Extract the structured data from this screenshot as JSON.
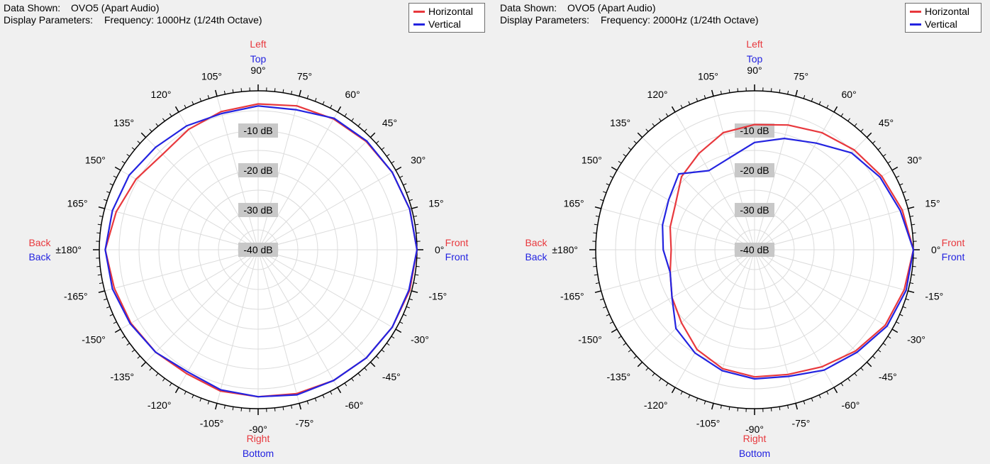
{
  "charts": [
    {
      "data_shown_label": "Data Shown:",
      "data_shown_value": "OVO5 (Apart Audio)",
      "display_params_label": "Display Parameters:",
      "display_params_value": "Frequency: 1000Hz (1/24th Octave)"
    },
    {
      "data_shown_label": "Data Shown:",
      "data_shown_value": "OVO5 (Apart Audio)",
      "display_params_label": "Display Parameters:",
      "display_params_value": "Frequency: 2000Hz (1/24th Octave)"
    }
  ],
  "colors": {
    "horizontal": "#e8383d",
    "vertical": "#2323e0"
  },
  "direction_labels": {
    "left": "Left",
    "top": "Top",
    "right": "Right",
    "bottom": "Bottom",
    "back": "Back",
    "front": "Front"
  },
  "chart_data": [
    {
      "type": "polar",
      "title": "Frequency: 1000Hz (1/24th Octave)",
      "angle_tick_labels": [
        "0°",
        "15°",
        "30°",
        "45°",
        "60°",
        "75°",
        "90°",
        "105°",
        "120°",
        "135°",
        "150°",
        "165°",
        "±180°",
        "-165°",
        "-150°",
        "-135°",
        "-120°",
        "-105°",
        "-90°",
        "-75°",
        "-60°",
        "-45°",
        "-30°",
        "-15°"
      ],
      "angle_tick_values": [
        0,
        15,
        30,
        45,
        60,
        75,
        90,
        105,
        120,
        135,
        150,
        165,
        180,
        -165,
        -150,
        -135,
        -120,
        -105,
        -90,
        -75,
        -60,
        -45,
        -30,
        -15
      ],
      "radial_tick_labels": [
        "-10 dB",
        "-20 dB",
        "-30 dB",
        "-40 dB"
      ],
      "radial_tick_values": [
        -10,
        -20,
        -30,
        -40
      ],
      "r_range_db": [
        -40,
        0
      ],
      "legend": [
        "Horizontal",
        "Vertical"
      ],
      "series": [
        {
          "name": "Horizontal",
          "angles": [
            0,
            15,
            30,
            45,
            60,
            75,
            90,
            105,
            120,
            135,
            150,
            165,
            180,
            -165,
            -150,
            -135,
            -120,
            -105,
            -90,
            -75,
            -60,
            -45,
            -30,
            -15
          ],
          "values": [
            0,
            -0.5,
            -1,
            -1.5,
            -2,
            -2.5,
            -3.3,
            -4,
            -5,
            -6,
            -4.5,
            -3,
            -1.5,
            -2.5,
            -3,
            -3.5,
            -4,
            -3.2,
            -3,
            -2.5,
            -2,
            -1.5,
            -1,
            -0.5
          ]
        },
        {
          "name": "Vertical",
          "angles": [
            0,
            15,
            30,
            45,
            60,
            75,
            90,
            105,
            120,
            135,
            150,
            165,
            180,
            -165,
            -150,
            -135,
            -120,
            -105,
            -90,
            -75,
            -60,
            -45,
            -30,
            -15
          ],
          "values": [
            0,
            -0.5,
            -1,
            -1.3,
            -1.8,
            -3.5,
            -3.8,
            -4.5,
            -4,
            -3.5,
            -2.5,
            -2,
            -1.5,
            -2,
            -2.8,
            -3.5,
            -4.5,
            -3.5,
            -3,
            -2.2,
            -2,
            -1.5,
            -1,
            -0.7
          ]
        }
      ]
    },
    {
      "type": "polar",
      "title": "Frequency: 2000Hz (1/24th Octave)",
      "angle_tick_labels": [
        "0°",
        "15°",
        "30°",
        "45°",
        "60°",
        "75°",
        "90°",
        "105°",
        "120°",
        "135°",
        "150°",
        "165°",
        "±180°",
        "-165°",
        "-150°",
        "-135°",
        "-120°",
        "-105°",
        "-90°",
        "-75°",
        "-60°",
        "-45°",
        "-30°",
        "-15°"
      ],
      "angle_tick_values": [
        0,
        15,
        30,
        45,
        60,
        75,
        90,
        105,
        120,
        135,
        150,
        165,
        180,
        -165,
        -150,
        -135,
        -120,
        -105,
        -90,
        -75,
        -60,
        -45,
        -30,
        -15
      ],
      "radial_tick_labels": [
        "-10 dB",
        "-20 dB",
        "-30 dB",
        "-40 dB"
      ],
      "radial_tick_values": [
        -10,
        -20,
        -30,
        -40
      ],
      "r_range_db": [
        -40,
        0
      ],
      "legend": [
        "Horizontal",
        "Vertical"
      ],
      "series": [
        {
          "name": "Horizontal",
          "angles": [
            0,
            15,
            30,
            45,
            60,
            75,
            90,
            105,
            120,
            135,
            150,
            165,
            180,
            -165,
            -150,
            -135,
            -120,
            -105,
            -90,
            -75,
            -60,
            -45,
            -30,
            -15
          ],
          "values": [
            0,
            -1.5,
            -3,
            -4.5,
            -6,
            -7.5,
            -8.5,
            -9.5,
            -12,
            -14,
            -17,
            -18,
            -19,
            -18,
            -16,
            -14,
            -11,
            -9,
            -8,
            -7.5,
            -6,
            -4,
            -2,
            -1
          ]
        },
        {
          "name": "Vertical",
          "angles": [
            0,
            15,
            30,
            45,
            60,
            75,
            90,
            105,
            120,
            135,
            150,
            165,
            180,
            -165,
            -150,
            -135,
            -120,
            -105,
            -90,
            -75,
            -60,
            -45,
            -30,
            -15
          ],
          "values": [
            0,
            -2,
            -3.5,
            -5.5,
            -9,
            -11,
            -13,
            -16,
            -17,
            -13,
            -15,
            -16,
            -17,
            -18,
            -16,
            -12,
            -10,
            -8.5,
            -7.5,
            -7,
            -5,
            -3.5,
            -1.5,
            -0.5
          ]
        }
      ]
    }
  ]
}
